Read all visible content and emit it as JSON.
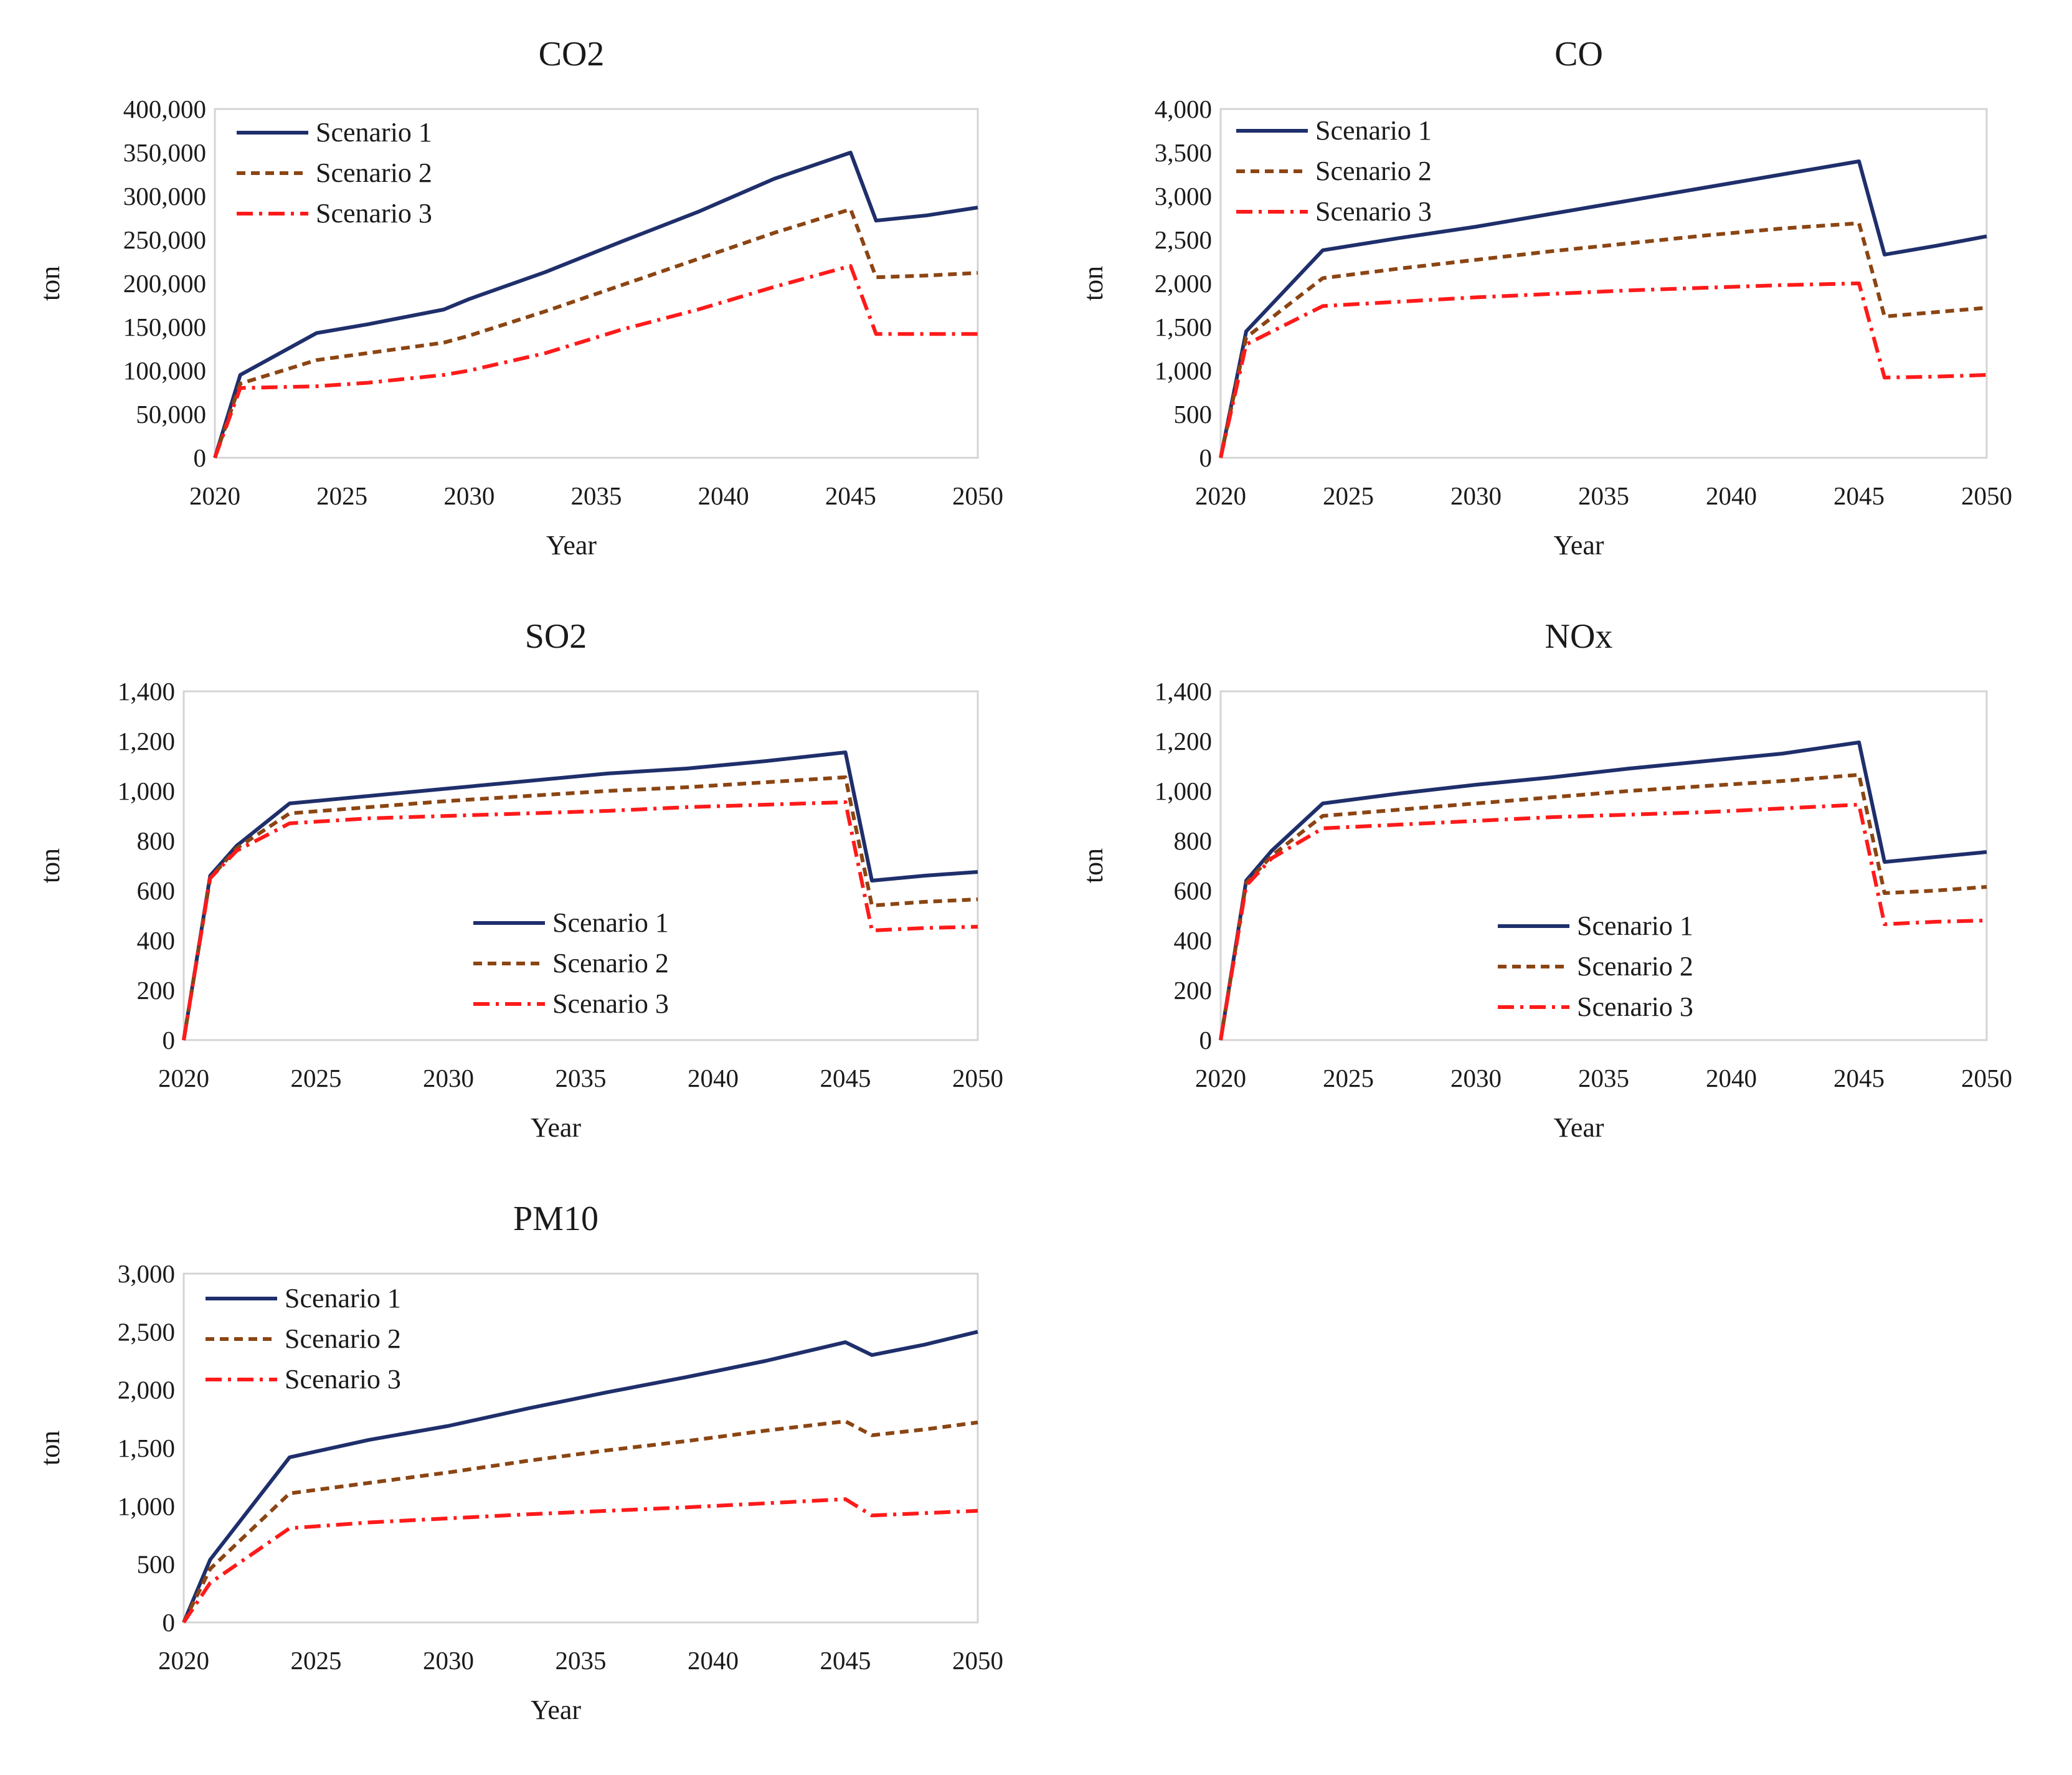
{
  "chart_data": [
    {
      "type": "line",
      "title": "CO2",
      "xlabel": "Year",
      "ylabel": "ton",
      "xlim": [
        2020,
        2050
      ],
      "ylim": [
        0,
        400000
      ],
      "xticks": [
        2020,
        2025,
        2030,
        2035,
        2040,
        2045,
        2050
      ],
      "yticks": [
        0,
        50000,
        100000,
        150000,
        200000,
        250000,
        300000,
        350000,
        400000
      ],
      "xtick_labels": [
        "2020",
        "2025",
        "2030",
        "2035",
        "2040",
        "2045",
        "2050"
      ],
      "ytick_labels": [
        "0",
        "50,000",
        "100,000",
        "150,000",
        "200,000",
        "250,000",
        "300,000",
        "350,000",
        "400,000"
      ],
      "legend_position": "top-left",
      "x": [
        2020,
        2021,
        2024,
        2026,
        2029,
        2030,
        2033,
        2036,
        2039,
        2042,
        2045,
        2046,
        2048,
        2050
      ],
      "series": [
        {
          "name": "Scenario 1",
          "color": "#1f2f6b",
          "dash": "solid",
          "values": [
            0,
            95000,
            143000,
            153000,
            170000,
            182000,
            213000,
            248000,
            282000,
            320000,
            350000,
            272000,
            278000,
            287000
          ]
        },
        {
          "name": "Scenario 2",
          "color": "#8b4513",
          "dash": "dashed",
          "values": [
            0,
            85000,
            112000,
            120000,
            132000,
            140000,
            168000,
            198000,
            228000,
            258000,
            285000,
            207000,
            209000,
            212000
          ]
        },
        {
          "name": "Scenario 3",
          "color": "#ff1a1a",
          "dash": "dashdot",
          "values": [
            0,
            80000,
            82000,
            86000,
            95000,
            100000,
            120000,
            147000,
            170000,
            196000,
            220000,
            142000,
            142000,
            142000
          ]
        }
      ]
    },
    {
      "type": "line",
      "title": "CO",
      "xlabel": "Year",
      "ylabel": "ton",
      "xlim": [
        2020,
        2050
      ],
      "ylim": [
        0,
        4000
      ],
      "xticks": [
        2020,
        2025,
        2030,
        2035,
        2040,
        2045,
        2050
      ],
      "yticks": [
        0,
        500,
        1000,
        1500,
        2000,
        2500,
        3000,
        3500,
        4000
      ],
      "xtick_labels": [
        "2020",
        "2025",
        "2030",
        "2035",
        "2040",
        "2045",
        "2050"
      ],
      "ytick_labels": [
        "0",
        "500",
        "1,000",
        "1,500",
        "2,000",
        "2,500",
        "3,000",
        "3,500",
        "4,000"
      ],
      "legend_position": "top-left",
      "x": [
        2020,
        2021,
        2024,
        2027,
        2030,
        2033,
        2036,
        2039,
        2042,
        2045,
        2046,
        2048,
        2050
      ],
      "series": [
        {
          "name": "Scenario 1",
          "color": "#1f2f6b",
          "dash": "solid",
          "values": [
            0,
            1450,
            2380,
            2520,
            2650,
            2800,
            2950,
            3100,
            3250,
            3400,
            2330,
            2430,
            2540
          ]
        },
        {
          "name": "Scenario 2",
          "color": "#8b4513",
          "dash": "dashed",
          "values": [
            0,
            1380,
            2060,
            2170,
            2270,
            2370,
            2460,
            2550,
            2630,
            2690,
            1620,
            1670,
            1720
          ]
        },
        {
          "name": "Scenario 3",
          "color": "#ff1a1a",
          "dash": "dashdot",
          "values": [
            0,
            1300,
            1740,
            1790,
            1840,
            1880,
            1920,
            1950,
            1980,
            2000,
            920,
            930,
            950
          ]
        }
      ]
    },
    {
      "type": "line",
      "title": "SO2",
      "xlabel": "Year",
      "ylabel": "ton",
      "xlim": [
        2020,
        2050
      ],
      "ylim": [
        0,
        1400
      ],
      "xticks": [
        2020,
        2025,
        2030,
        2035,
        2040,
        2045,
        2050
      ],
      "yticks": [
        0,
        200,
        400,
        600,
        800,
        1000,
        1200,
        1400
      ],
      "xtick_labels": [
        "2020",
        "2025",
        "2030",
        "2035",
        "2040",
        "2045",
        "2050"
      ],
      "ytick_labels": [
        "0",
        "200",
        "400",
        "600",
        "800",
        "1,000",
        "1,200",
        "1,400"
      ],
      "legend_position": "lower-center",
      "x": [
        2020,
        2021,
        2022,
        2024,
        2027,
        2030,
        2033,
        2036,
        2039,
        2042,
        2045,
        2046,
        2048,
        2050
      ],
      "series": [
        {
          "name": "Scenario 1",
          "color": "#1f2f6b",
          "dash": "solid",
          "values": [
            0,
            660,
            780,
            950,
            980,
            1010,
            1040,
            1070,
            1090,
            1120,
            1155,
            640,
            660,
            675
          ]
        },
        {
          "name": "Scenario 2",
          "color": "#8b4513",
          "dash": "dashed",
          "values": [
            0,
            650,
            770,
            910,
            935,
            960,
            980,
            1000,
            1015,
            1035,
            1055,
            540,
            555,
            565
          ]
        },
        {
          "name": "Scenario 3",
          "color": "#ff1a1a",
          "dash": "dashdot",
          "values": [
            0,
            650,
            760,
            870,
            890,
            900,
            910,
            920,
            935,
            945,
            955,
            440,
            450,
            455
          ]
        }
      ]
    },
    {
      "type": "line",
      "title": "NOx",
      "xlabel": "Year",
      "ylabel": "ton",
      "xlim": [
        2020,
        2050
      ],
      "ylim": [
        0,
        1400
      ],
      "xticks": [
        2020,
        2025,
        2030,
        2035,
        2040,
        2045,
        2050
      ],
      "yticks": [
        0,
        200,
        400,
        600,
        800,
        1000,
        1200,
        1400
      ],
      "xtick_labels": [
        "2020",
        "2025",
        "2030",
        "2035",
        "2040",
        "2045",
        "2050"
      ],
      "ytick_labels": [
        "0",
        "200",
        "400",
        "600",
        "800",
        "1,000",
        "1,200",
        "1,400"
      ],
      "legend_position": "lower-center",
      "x": [
        2020,
        2021,
        2022,
        2024,
        2027,
        2030,
        2033,
        2036,
        2039,
        2042,
        2045,
        2046,
        2048,
        2050
      ],
      "series": [
        {
          "name": "Scenario 1",
          "color": "#1f2f6b",
          "dash": "solid",
          "values": [
            0,
            640,
            760,
            950,
            990,
            1025,
            1055,
            1090,
            1120,
            1150,
            1195,
            715,
            735,
            755
          ]
        },
        {
          "name": "Scenario 2",
          "color": "#8b4513",
          "dash": "dashed",
          "values": [
            0,
            630,
            740,
            900,
            925,
            950,
            975,
            1000,
            1020,
            1040,
            1065,
            590,
            600,
            615
          ]
        },
        {
          "name": "Scenario 3",
          "color": "#ff1a1a",
          "dash": "dashdot",
          "values": [
            0,
            620,
            730,
            850,
            865,
            880,
            895,
            905,
            915,
            930,
            945,
            465,
            475,
            480
          ]
        }
      ]
    },
    {
      "type": "line",
      "title": "PM10",
      "xlabel": "Year",
      "ylabel": "ton",
      "xlim": [
        2020,
        2050
      ],
      "ylim": [
        0,
        3000
      ],
      "xticks": [
        2020,
        2025,
        2030,
        2035,
        2040,
        2045,
        2050
      ],
      "yticks": [
        0,
        500,
        1000,
        1500,
        2000,
        2500,
        3000
      ],
      "xtick_labels": [
        "2020",
        "2025",
        "2030",
        "2035",
        "2040",
        "2045",
        "2050"
      ],
      "ytick_labels": [
        "0",
        "500",
        "1,000",
        "1,500",
        "2,000",
        "2,500",
        "3,000"
      ],
      "legend_position": "top-left",
      "x": [
        2020,
        2021,
        2024,
        2027,
        2030,
        2033,
        2036,
        2039,
        2042,
        2045,
        2046,
        2048,
        2050
      ],
      "series": [
        {
          "name": "Scenario 1",
          "color": "#1f2f6b",
          "dash": "solid",
          "values": [
            0,
            540,
            1420,
            1570,
            1690,
            1840,
            1980,
            2110,
            2250,
            2410,
            2300,
            2390,
            2500
          ]
        },
        {
          "name": "Scenario 2",
          "color": "#8b4513",
          "dash": "dashed",
          "values": [
            0,
            460,
            1110,
            1200,
            1290,
            1390,
            1480,
            1560,
            1650,
            1730,
            1610,
            1660,
            1720
          ]
        },
        {
          "name": "Scenario 3",
          "color": "#ff1a1a",
          "dash": "dashdot",
          "values": [
            0,
            340,
            810,
            860,
            895,
            930,
            960,
            990,
            1025,
            1060,
            920,
            940,
            960
          ]
        }
      ]
    }
  ]
}
